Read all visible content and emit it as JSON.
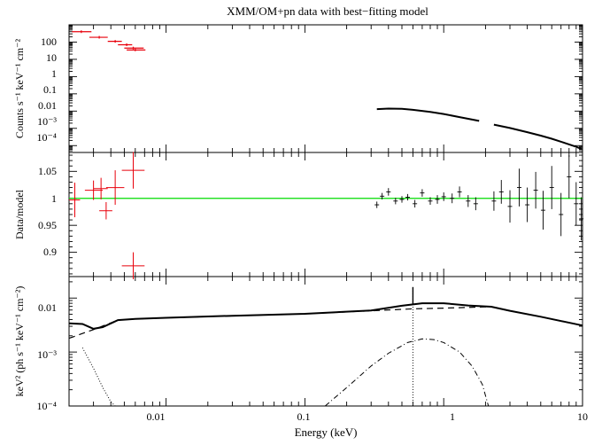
{
  "figure": {
    "title": "XMM/OM+pn data with best−fitting model",
    "xlabel": "Energy (keV)",
    "x_tick_labels": [
      "0.01",
      "0.1",
      "1",
      "10"
    ]
  },
  "panels": {
    "top": {
      "ylabel": "Counts s⁻¹ keV⁻¹ cm⁻²",
      "y_tick_labels": [
        "100",
        "10",
        "1",
        "0.1",
        "0.01",
        "10⁻³",
        "10⁻⁴"
      ]
    },
    "middle": {
      "ylabel": "Data/model",
      "y_tick_labels": [
        "1.05",
        "1",
        "0.95",
        "0.9"
      ]
    },
    "bottom": {
      "ylabel": "keV² (ph s⁻¹ keV⁻¹ cm⁻²)",
      "y_tick_labels": [
        "0.01",
        "10⁻³",
        "10⁻⁴"
      ]
    }
  },
  "colors": {
    "om_data": "#e8000b",
    "pn_data": "#000000",
    "unity_line": "#00dd00",
    "axes": "#000000"
  },
  "chart_data": [
    {
      "type": "scatter",
      "panel": "top",
      "xscale": "log",
      "yscale": "log",
      "xlim": [
        0.002,
        10
      ],
      "ylim": [
        4e-05,
        1000
      ],
      "ylabel": "Counts s⁻¹ keV⁻¹ cm⁻²",
      "series": [
        {
          "role": "OM data (red)",
          "points": [
            {
              "x": 0.00245,
              "y": 400,
              "xlo": 0.0021,
              "xhi": 0.0029
            },
            {
              "x": 0.0033,
              "y": 190,
              "xlo": 0.0028,
              "xhi": 0.0038
            },
            {
              "x": 0.0043,
              "y": 110,
              "xlo": 0.0038,
              "xhi": 0.0048
            },
            {
              "x": 0.0052,
              "y": 70,
              "xlo": 0.0045,
              "xhi": 0.0057
            },
            {
              "x": 0.0058,
              "y": 45,
              "xlo": 0.005,
              "xhi": 0.0069
            },
            {
              "x": 0.006,
              "y": 35,
              "xlo": 0.0052,
              "xhi": 0.0071
            }
          ]
        },
        {
          "role": "pn spectrum (black)",
          "points": [
            {
              "x": 0.33,
              "y": 0.013
            },
            {
              "x": 0.4,
              "y": 0.014
            },
            {
              "x": 0.5,
              "y": 0.0135
            },
            {
              "x": 0.6,
              "y": 0.0118
            },
            {
              "x": 0.8,
              "y": 0.009
            },
            {
              "x": 1.0,
              "y": 0.0068
            },
            {
              "x": 1.3,
              "y": 0.0045
            },
            {
              "x": 1.8,
              "y": 0.0027
            },
            {
              "x": 2.3,
              "y": 0.00165
            },
            {
              "x": 3.0,
              "y": 0.00105
            },
            {
              "x": 4.0,
              "y": 0.0006
            },
            {
              "x": 5.0,
              "y": 0.00038
            },
            {
              "x": 6.0,
              "y": 0.00025
            },
            {
              "x": 7.5,
              "y": 0.00014
            },
            {
              "x": 9.0,
              "y": 8.5e-05
            },
            {
              "x": 9.8,
              "y": 6.5e-05
            }
          ],
          "gap_keV": [
            1.8,
            2.25
          ]
        }
      ]
    },
    {
      "type": "scatter",
      "panel": "middle",
      "xscale": "log",
      "yscale": "linear",
      "xlim": [
        0.002,
        10
      ],
      "ylim": [
        0.855,
        1.085
      ],
      "ylabel": "Data/model",
      "reference_line": 1.0,
      "series": [
        {
          "role": "OM ratios (red)",
          "points": [
            {
              "x": 0.0022,
              "y": 0.997,
              "yerr": 0.032,
              "xlo": 0.002,
              "xhi": 0.0024
            },
            {
              "x": 0.003,
              "y": 1.015,
              "yerr": 0.018,
              "xlo": 0.0026,
              "xhi": 0.0035
            },
            {
              "x": 0.0034,
              "y": 1.018,
              "yerr": 0.02,
              "xlo": 0.003,
              "xhi": 0.0038
            },
            {
              "x": 0.0037,
              "y": 0.977,
              "yerr": 0.016,
              "xlo": 0.0033,
              "xhi": 0.0041
            },
            {
              "x": 0.0043,
              "y": 1.02,
              "yerr": 0.032,
              "xlo": 0.0037,
              "xhi": 0.005
            },
            {
              "x": 0.0058,
              "y": 1.052,
              "yerr": 0.034,
              "xlo": 0.0048,
              "xhi": 0.007
            },
            {
              "x": 0.0058,
              "y": 0.875,
              "yerr": 0.025,
              "xlo": 0.0048,
              "xhi": 0.007
            }
          ]
        },
        {
          "role": "pn ratios (black)",
          "points": [
            {
              "x": 0.33,
              "y": 0.988,
              "yerr": 0.006
            },
            {
              "x": 0.36,
              "y": 1.004,
              "yerr": 0.006
            },
            {
              "x": 0.4,
              "y": 1.012,
              "yerr": 0.007
            },
            {
              "x": 0.45,
              "y": 0.995,
              "yerr": 0.006
            },
            {
              "x": 0.5,
              "y": 0.998,
              "yerr": 0.006
            },
            {
              "x": 0.55,
              "y": 1.002,
              "yerr": 0.006
            },
            {
              "x": 0.62,
              "y": 0.99,
              "yerr": 0.007
            },
            {
              "x": 0.7,
              "y": 1.01,
              "yerr": 0.007
            },
            {
              "x": 0.8,
              "y": 0.995,
              "yerr": 0.007
            },
            {
              "x": 0.9,
              "y": 0.998,
              "yerr": 0.008
            },
            {
              "x": 1.0,
              "y": 1.003,
              "yerr": 0.008
            },
            {
              "x": 1.15,
              "y": 1.0,
              "yerr": 0.009
            },
            {
              "x": 1.3,
              "y": 1.012,
              "yerr": 0.01
            },
            {
              "x": 1.5,
              "y": 0.995,
              "yerr": 0.011
            },
            {
              "x": 1.7,
              "y": 0.99,
              "yerr": 0.012
            },
            {
              "x": 2.3,
              "y": 0.995,
              "yerr": 0.018
            },
            {
              "x": 2.6,
              "y": 1.012,
              "yerr": 0.022
            },
            {
              "x": 3.0,
              "y": 0.985,
              "yerr": 0.03
            },
            {
              "x": 3.5,
              "y": 1.02,
              "yerr": 0.035
            },
            {
              "x": 4.0,
              "y": 0.988,
              "yerr": 0.032
            },
            {
              "x": 4.6,
              "y": 1.015,
              "yerr": 0.034
            },
            {
              "x": 5.2,
              "y": 0.978,
              "yerr": 0.036
            },
            {
              "x": 6.0,
              "y": 1.02,
              "yerr": 0.04
            },
            {
              "x": 7.0,
              "y": 0.97,
              "yerr": 0.04
            },
            {
              "x": 8.0,
              "y": 1.04,
              "yerr": 0.04
            },
            {
              "x": 9.0,
              "y": 0.99,
              "yerr": 0.04
            },
            {
              "x": 9.8,
              "y": 0.962,
              "yerr": 0.04
            }
          ]
        }
      ]
    },
    {
      "type": "line",
      "panel": "bottom",
      "xscale": "log",
      "yscale": "log",
      "xlim": [
        0.002,
        10
      ],
      "ylim": [
        0.0001,
        0.025
      ],
      "ylabel": "keV² (ph s⁻¹ keV⁻¹ cm⁻²)",
      "series": [
        {
          "role": "total model (solid)",
          "points": [
            {
              "x": 0.002,
              "y": 0.0034
            },
            {
              "x": 0.0025,
              "y": 0.0033
            },
            {
              "x": 0.003,
              "y": 0.0027
            },
            {
              "x": 0.0035,
              "y": 0.0029
            },
            {
              "x": 0.0045,
              "y": 0.0039
            },
            {
              "x": 0.006,
              "y": 0.0041
            },
            {
              "x": 0.01,
              "y": 0.0043
            },
            {
              "x": 0.03,
              "y": 0.0047
            },
            {
              "x": 0.1,
              "y": 0.0051
            },
            {
              "x": 0.3,
              "y": 0.0059
            },
            {
              "x": 0.5,
              "y": 0.0072
            },
            {
              "x": 0.7,
              "y": 0.008
            },
            {
              "x": 1.0,
              "y": 0.008
            },
            {
              "x": 1.5,
              "y": 0.0073
            },
            {
              "x": 2.2,
              "y": 0.0069
            },
            {
              "x": 3.0,
              "y": 0.0058
            },
            {
              "x": 5.0,
              "y": 0.0045
            },
            {
              "x": 10,
              "y": 0.0031
            }
          ]
        },
        {
          "role": "continuum component (dashed)",
          "points": [
            {
              "x": 0.002,
              "y": 0.0018
            },
            {
              "x": 0.003,
              "y": 0.0026
            },
            {
              "x": 0.0045,
              "y": 0.0039
            },
            {
              "x": 0.006,
              "y": 0.0041
            },
            {
              "x": 0.01,
              "y": 0.0043
            },
            {
              "x": 0.1,
              "y": 0.0051
            },
            {
              "x": 0.3,
              "y": 0.0058
            },
            {
              "x": 0.6,
              "y": 0.0063
            },
            {
              "x": 1.0,
              "y": 0.0065
            },
            {
              "x": 1.5,
              "y": 0.0067
            },
            {
              "x": 2.2,
              "y": 0.0069
            },
            {
              "x": 3.0,
              "y": 0.0058
            },
            {
              "x": 5.0,
              "y": 0.0045
            },
            {
              "x": 10,
              "y": 0.0031
            }
          ]
        },
        {
          "role": "soft component (dash-dot)",
          "points": [
            {
              "x": 0.14,
              "y": 0.0001
            },
            {
              "x": 0.2,
              "y": 0.00022
            },
            {
              "x": 0.3,
              "y": 0.00055
            },
            {
              "x": 0.4,
              "y": 0.00095
            },
            {
              "x": 0.55,
              "y": 0.0015
            },
            {
              "x": 0.7,
              "y": 0.00175
            },
            {
              "x": 0.85,
              "y": 0.0017
            },
            {
              "x": 1.0,
              "y": 0.0015
            },
            {
              "x": 1.3,
              "y": 0.001
            },
            {
              "x": 1.6,
              "y": 0.00055
            },
            {
              "x": 1.9,
              "y": 0.00025
            },
            {
              "x": 2.1,
              "y": 0.0001
            }
          ]
        },
        {
          "role": "OM component (dotted)",
          "points": [
            {
              "x": 0.0025,
              "y": 0.0012
            },
            {
              "x": 0.003,
              "y": 0.0005
            },
            {
              "x": 0.0035,
              "y": 0.00022
            },
            {
              "x": 0.004,
              "y": 0.00012
            },
            {
              "x": 0.0043,
              "y": 0.0001
            }
          ]
        },
        {
          "role": "line feature (dotted vertical + spike)",
          "points": [
            {
              "x": 0.6,
              "y": 0.0001
            },
            {
              "x": 0.6,
              "y": 0.016
            }
          ]
        }
      ]
    }
  ]
}
